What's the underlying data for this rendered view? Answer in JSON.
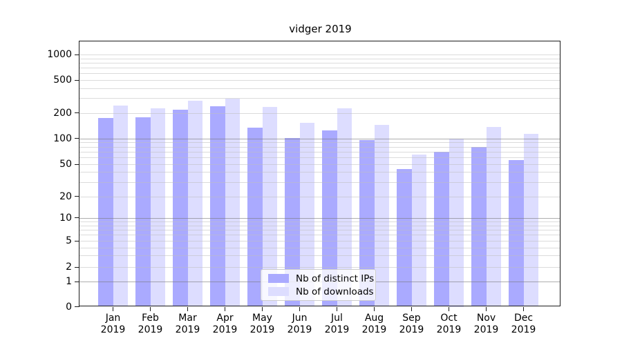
{
  "title": "vidger 2019",
  "colors": {
    "ips_bar": "#aaaaff",
    "downloads_bar": "#ddddff",
    "grid_major": "#8f8f8f",
    "grid_minor": "#dcdcdc",
    "axis": "#1a1a1a"
  },
  "legend": {
    "items": [
      {
        "label": "Nb of distinct IPs",
        "color": "#aaaaff"
      },
      {
        "label": "Nb of downloads",
        "color": "#ddddff"
      }
    ]
  },
  "chart_data": {
    "type": "bar",
    "title": "vidger 2019",
    "months": [
      "Jan",
      "Feb",
      "Mar",
      "Apr",
      "May",
      "Jun",
      "Jul",
      "Aug",
      "Sep",
      "Oct",
      "Nov",
      "Dec"
    ],
    "year": "2019",
    "categories": [
      "Jan 2019",
      "Feb 2019",
      "Mar 2019",
      "Apr 2019",
      "May 2019",
      "Jun 2019",
      "Jul 2019",
      "Aug 2019",
      "Sep 2019",
      "Oct 2019",
      "Nov 2019",
      "Dec 2019"
    ],
    "series": [
      {
        "name": "Nb of distinct IPs",
        "color": "#aaaaff",
        "values": [
          175,
          178,
          218,
          240,
          134,
          101,
          124,
          95,
          44,
          70,
          79,
          56
        ]
      },
      {
        "name": "Nb of downloads",
        "color": "#ddddff",
        "values": [
          243,
          228,
          283,
          298,
          235,
          152,
          225,
          144,
          65,
          100,
          136,
          113
        ]
      }
    ],
    "yscale": "symlog",
    "yticks": [
      0,
      1,
      2,
      5,
      10,
      20,
      50,
      100,
      200,
      500,
      1000
    ],
    "ytick_labels": [
      "0",
      "1",
      "2",
      "5",
      "10",
      "20",
      "50",
      "100",
      "200",
      "500",
      "1000"
    ],
    "ylim": [
      0,
      1400
    ],
    "grid": "both",
    "legend_position": "lower center"
  }
}
